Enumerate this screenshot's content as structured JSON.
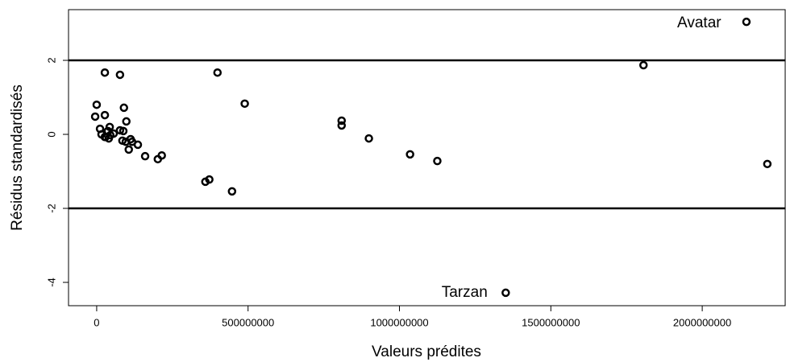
{
  "chart_data": {
    "type": "scatter",
    "xlabel": "Valeurs prédites",
    "ylabel": "Résidus standardisés",
    "x": [
      2146000000,
      1806000000,
      2215000000,
      1351000000,
      1125000000,
      1035000000,
      899000000,
      809000000,
      809000000,
      489000000,
      399000000,
      447000000,
      372000000,
      359000000,
      215000000,
      202000000,
      160000000,
      136000000,
      112000000,
      106000000,
      98000000,
      90000000,
      77000000,
      27000000,
      27000000,
      0,
      -5000000,
      11000000,
      16000000,
      37000000,
      45000000,
      40000000,
      29000000,
      56000000,
      43000000,
      77000000,
      88000000,
      85000000,
      96000000,
      117000000,
      27000000
    ],
    "values": [
      3.04,
      1.87,
      -0.8,
      -4.28,
      -0.72,
      -0.54,
      -0.11,
      0.37,
      0.24,
      0.83,
      1.67,
      -1.54,
      -1.22,
      -1.28,
      -0.57,
      -0.67,
      -0.59,
      -0.28,
      -0.13,
      -0.41,
      0.35,
      0.72,
      1.61,
      1.67,
      0.52,
      0.8,
      0.48,
      0.15,
      0,
      0.09,
      -0.02,
      -0.11,
      -0.07,
      0.02,
      0.2,
      0.11,
      0.09,
      -0.17,
      -0.2,
      -0.2,
      -0.07
    ],
    "color": "#000000",
    "xlim": [
      -93000000,
      2274000000
    ],
    "ylim": [
      -4.63,
      3.37
    ],
    "xticks": [
      0,
      500000000,
      1000000000,
      1500000000,
      2000000000
    ],
    "yticks": [
      -4,
      -2,
      0,
      2
    ],
    "hlines": [
      2,
      -2
    ],
    "annotations": [
      {
        "text": "Avatar",
        "x": 1990000000,
        "y": 3.0
      },
      {
        "text": "Tarzan",
        "x": 1215000000,
        "y": -4.28
      }
    ]
  }
}
